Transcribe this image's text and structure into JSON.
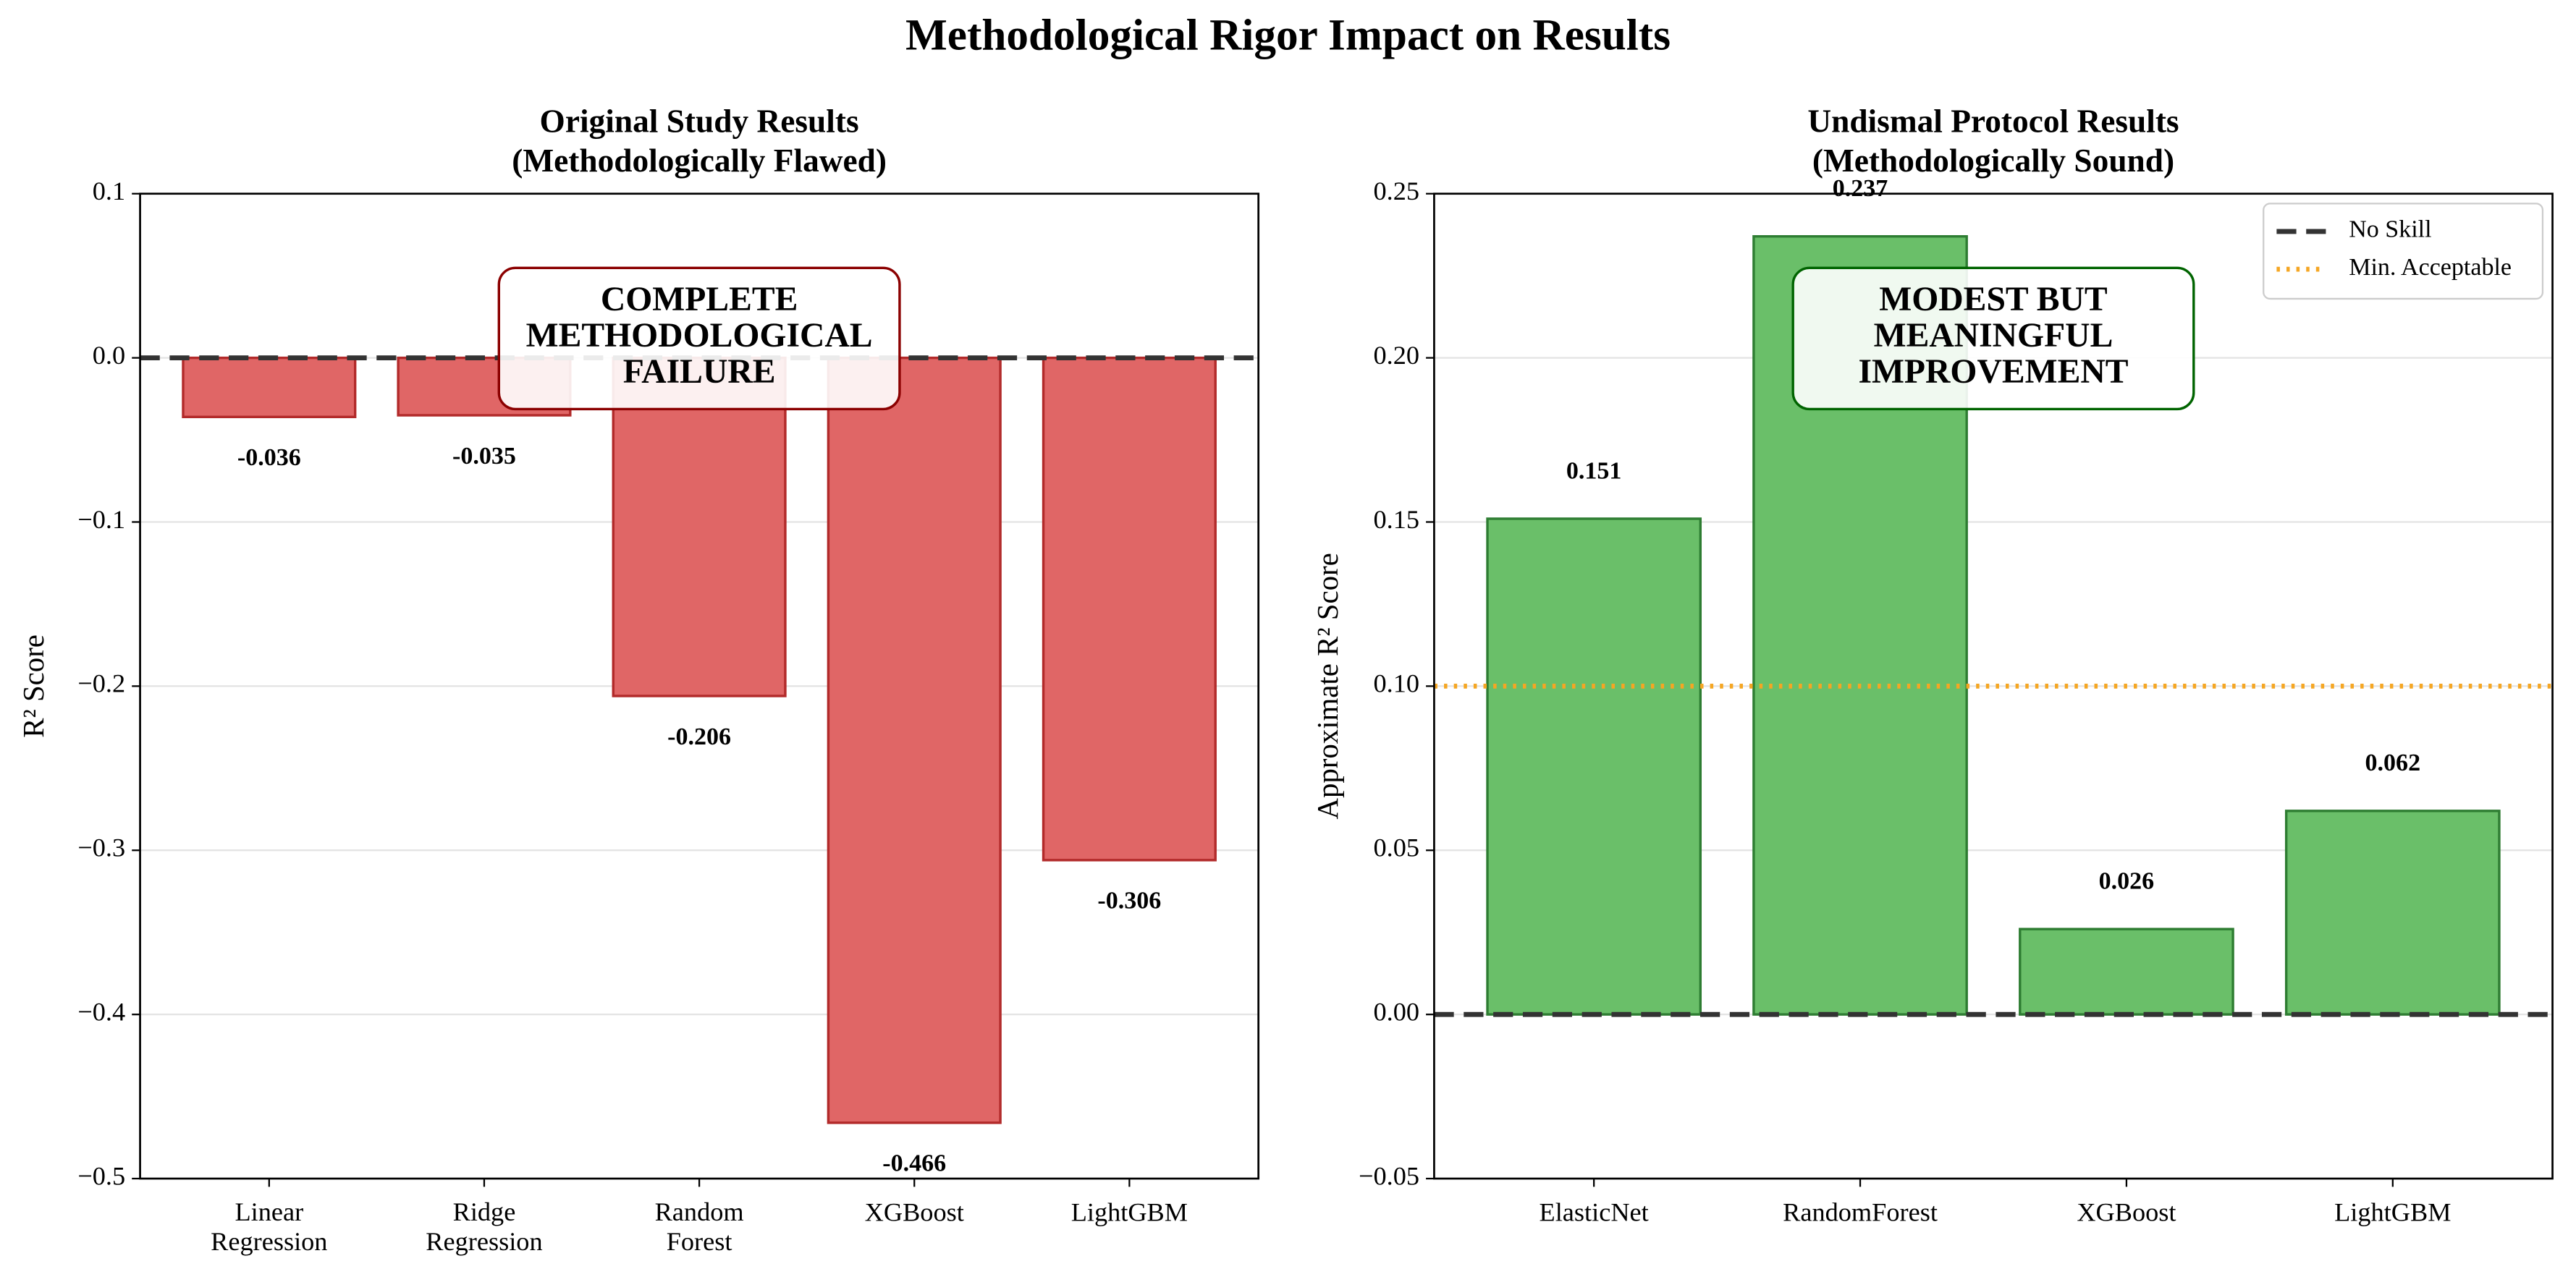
{
  "title": "Methodological Rigor Impact on Results",
  "chart_data": [
    {
      "type": "bar",
      "title": "Original Study Results\n(Methodologically Flawed)",
      "title_color": "#8b0000",
      "ylabel": "R² Score",
      "categories": [
        "Linear\nRegression",
        "Ridge\nRegression",
        "Random\nForest",
        "XGBoost",
        "LightGBM"
      ],
      "values": [
        -0.036,
        -0.035,
        -0.206,
        -0.466,
        -0.306
      ],
      "color": "#e06666",
      "edge_color": "#b22a2a",
      "ylim": [
        -0.5,
        0.1
      ],
      "yticks": [
        0.1,
        {
          "value": 0.0,
          "label": "0.0"
        },
        {
          "value": -0.1,
          "label": "−0.1"
        },
        {
          "value": -0.2,
          "label": "−0.2"
        },
        {
          "value": -0.3,
          "label": "−0.3"
        },
        {
          "value": -0.4,
          "label": "−0.4"
        },
        {
          "value": -0.5,
          "label": "−0.5"
        }
      ],
      "grid": true,
      "reference_lines": [
        {
          "value": 0,
          "style": "dashed",
          "color": "#333333"
        }
      ],
      "annotation": "COMPLETE\nMETHODOLOGICAL\nFAILURE"
    },
    {
      "type": "bar",
      "title": "Undismal Protocol Results\n(Methodologically Sound)",
      "title_color": "#006400",
      "ylabel": "Approximate R² Score",
      "categories": [
        "ElasticNet",
        "RandomForest",
        "XGBoost",
        "LightGBM"
      ],
      "values": [
        0.151,
        0.237,
        0.026,
        0.062
      ],
      "color": "#6abf69",
      "edge_color": "#2e7d32",
      "ylim": [
        -0.05,
        0.25
      ],
      "yticks": [
        {
          "value": -0.05,
          "label": "−0.05"
        },
        {
          "value": 0.0,
          "label": "0.00"
        },
        0.05,
        {
          "value": 0.1,
          "label": "0.10"
        },
        0.15,
        {
          "value": 0.2,
          "label": "0.20"
        },
        0.25
      ],
      "grid": true,
      "reference_lines": [
        {
          "name": "No Skill",
          "value": 0,
          "style": "dashed",
          "color": "#333333"
        },
        {
          "name": "Min. Acceptable",
          "value": 0.1,
          "style": "dotted",
          "color": "#f5a623"
        }
      ],
      "legend": "upper right",
      "annotation": "MODEST BUT\nMEANINGFUL\nIMPROVEMENT"
    }
  ]
}
